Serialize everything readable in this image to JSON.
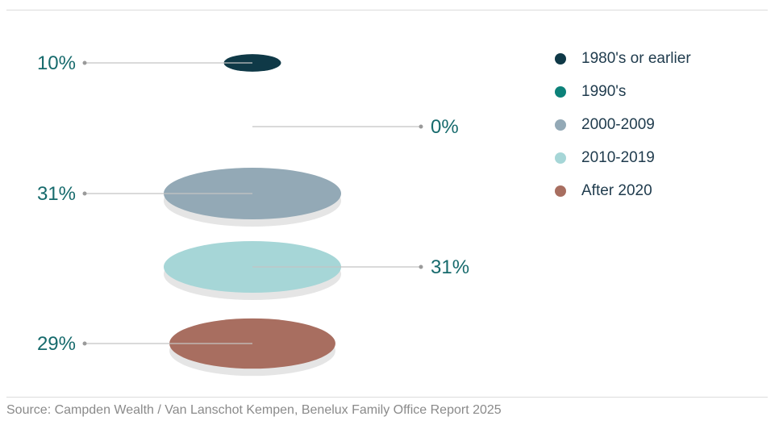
{
  "chart_data": {
    "type": "pie",
    "variant": "stacked-ellipse-slices",
    "title": "",
    "categories": [
      "1980's or earlier",
      "1990's",
      "2000-2009",
      "2010-2019",
      "After 2020"
    ],
    "values": [
      10,
      0,
      31,
      31,
      29
    ],
    "labels": [
      "10%",
      "0%",
      "31%",
      "31%",
      "29%"
    ],
    "label_sides": [
      "left",
      "right",
      "left",
      "right",
      "left"
    ],
    "colors": [
      "#0f3947",
      "#0c8179",
      "#93a9b6",
      "#a6d6d7",
      "#a86e60"
    ],
    "legend_position": "right"
  },
  "legend": {
    "items": [
      {
        "label": "1980's or earlier",
        "color": "#0f3947"
      },
      {
        "label": "1990's",
        "color": "#0c8179"
      },
      {
        "label": "2000-2009",
        "color": "#93a9b6"
      },
      {
        "label": "2010-2019",
        "color": "#a6d6d7"
      },
      {
        "label": "After 2020",
        "color": "#a86e60"
      }
    ]
  },
  "styles": {
    "label_color": "#166a6c",
    "leader_color": "#c4c4c4",
    "shadow_color": "#e5e5e5"
  },
  "footer": {
    "source": "Source: Campden Wealth / Van Lanschot Kempen, Benelux Family Office Report 2025"
  }
}
